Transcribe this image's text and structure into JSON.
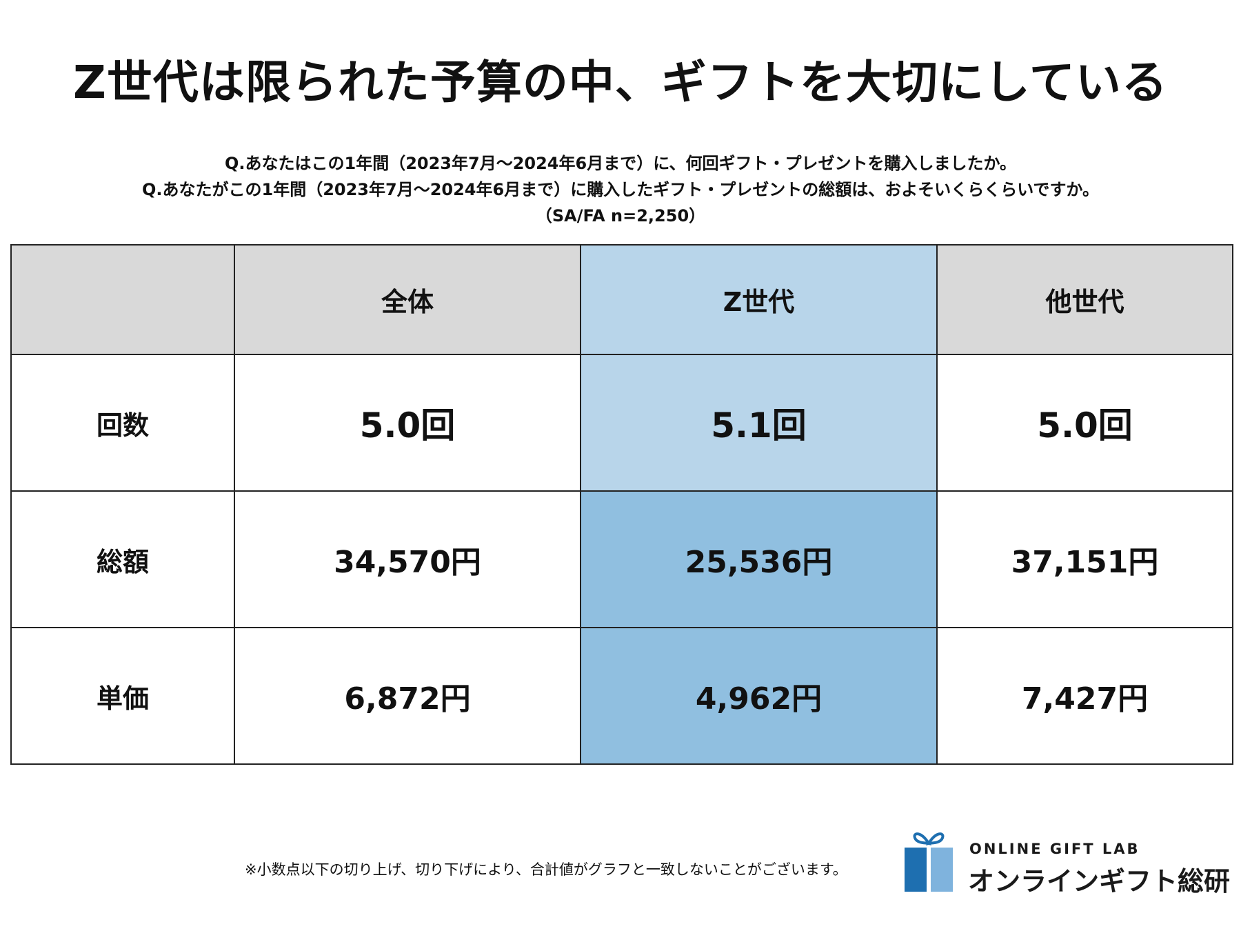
{
  "title": "Z世代は限られた予算の中、ギフトを大切にしている",
  "questions": {
    "q1": "Q.あなたはこの1年間（2023年7月～2024年6月まで）に、何回ギフト・プレゼントを購入しましたか。",
    "q2": "Q.あなたがこの1年間（2023年7月～2024年6月まで）に購入したギフト・プレゼントの総額は、およそいくらくらいですか。",
    "sample": "（SA/FA n=2,250）"
  },
  "chart_data": {
    "type": "table",
    "columns": [
      "",
      "全体",
      "Z世代",
      "他世代"
    ],
    "rows": [
      {
        "label": "回数",
        "values": [
          5.0,
          5.1,
          5.0
        ],
        "unit": "回",
        "display": [
          "5.0回",
          "5.1回",
          "5.0回"
        ]
      },
      {
        "label": "総額",
        "values": [
          34570,
          25536,
          37151
        ],
        "unit": "円",
        "display": [
          "34,570円",
          "25,536円",
          "37,151円"
        ]
      },
      {
        "label": "単価",
        "values": [
          6872,
          4962,
          7427
        ],
        "unit": "円",
        "display": [
          "6,872円",
          "4,962円",
          "7,427円"
        ]
      }
    ],
    "highlight_column": "Z世代",
    "highlight_colors": {
      "header": "#b8d5ea",
      "count_row": "#b8d5ea",
      "amount_rows": "#90bfe0"
    },
    "header_color": "#d9d9d9"
  },
  "footnote": "※小数点以下の切り上げ、切り下げにより、合計値がグラフと一致しないことがございます。",
  "logo": {
    "en": "ONLINE GIFT LAB",
    "jp": "オンラインギフト総研",
    "colors": {
      "dark": "#1e6fb0",
      "light": "#7fb3dd"
    }
  }
}
